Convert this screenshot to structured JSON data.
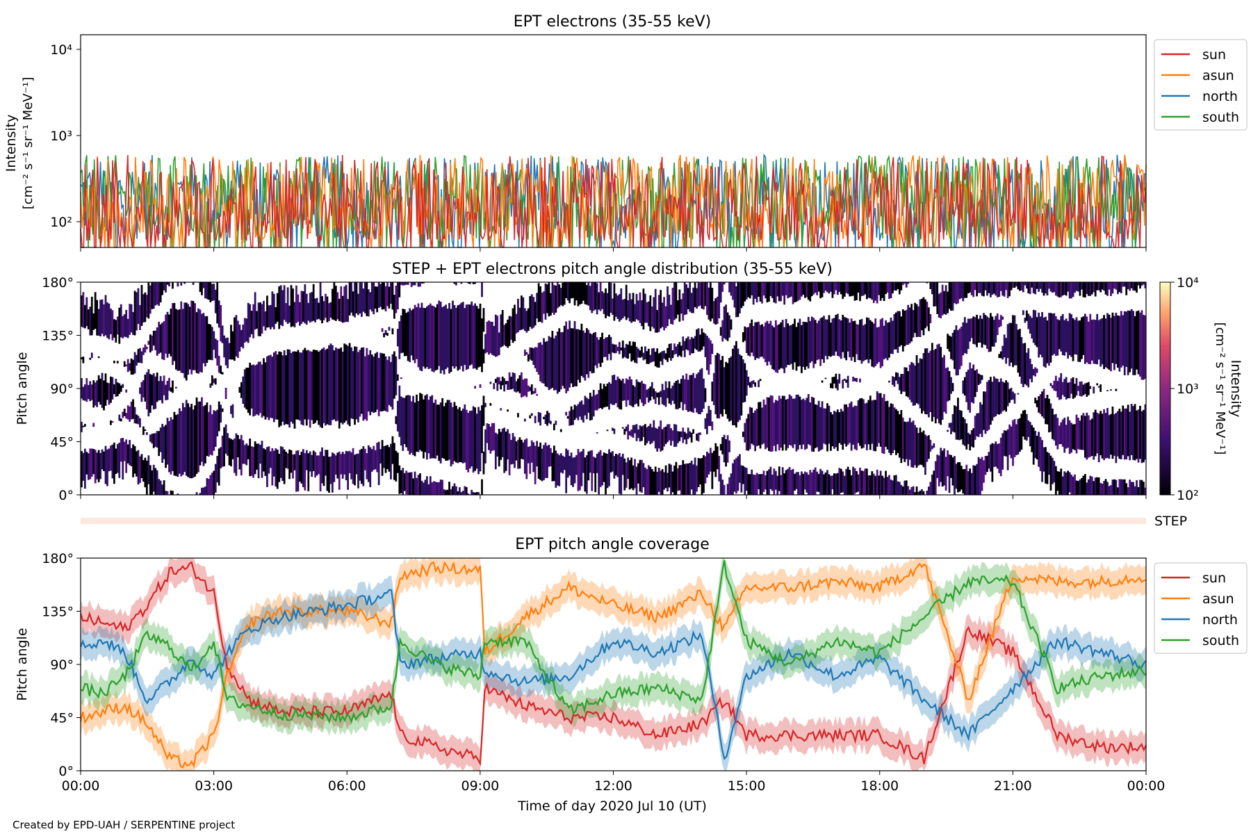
{
  "footer_credit": "Created by EPD-UAH / SERPENTINE project",
  "x_axis": {
    "label": "Time of day 2020 Jul 10 (UT)",
    "tick_labels": [
      "00:00",
      "03:00",
      "06:00",
      "09:00",
      "12:00",
      "15:00",
      "18:00",
      "21:00",
      "00:00"
    ],
    "range_hours": [
      0,
      24
    ]
  },
  "colors": {
    "sun": "#d62728",
    "asun": "#ff7f0e",
    "north": "#1f77b4",
    "south": "#2ca02c",
    "step_band": "#fde8de",
    "pad_fill": "#3b0f70"
  },
  "chart_data": [
    {
      "type": "line",
      "title": "EPT electrons (35-55 keV)",
      "ylabel_line1": "Intensity",
      "ylabel_line2": "[cm⁻² s⁻¹ sr⁻¹ MeV⁻¹]",
      "yscale": "log",
      "ylim": [
        50,
        15000
      ],
      "y_tick_labels": [
        "10⁴",
        "10³",
        "10²"
      ],
      "x_range_hours": [
        0,
        24
      ],
      "legend_position": "outside right, top",
      "series_names": [
        "sun",
        "asun",
        "north",
        "south"
      ],
      "typical_range": [
        60,
        600
      ],
      "note_series": "noisy counts fluctuating mostly between ~60 and ~600 throughout the day"
    },
    {
      "type": "heatmap",
      "title": "STEP + EPT electrons pitch angle distribution (35-55 keV)",
      "ylabel": "Pitch angle",
      "ylim": [
        0,
        180
      ],
      "y_tick_labels": [
        "180°",
        "135°",
        "90°",
        "45°",
        "0°"
      ],
      "colorbar": {
        "label_line1": "Intensity",
        "label_line2": "[cm⁻² s⁻¹ sr⁻¹ MeV⁻¹]",
        "scale": "log",
        "range": [
          100,
          10000
        ],
        "tick_labels": [
          "10⁴",
          "10³",
          "10²"
        ]
      },
      "step_strip_label": "STEP"
    },
    {
      "type": "line",
      "title": "EPT pitch angle coverage",
      "ylabel": "Pitch angle",
      "ylim": [
        0,
        180
      ],
      "y_tick_labels": [
        "180°",
        "135°",
        "90°",
        "45°",
        "0°"
      ],
      "legend_position": "outside right, top",
      "series": [
        {
          "name": "sun",
          "x_hours": [
            0,
            0.5,
            1,
            1.5,
            2,
            2.5,
            3,
            3.3,
            3.8,
            4.5,
            6,
            7,
            7.2,
            8,
            9,
            9.1,
            10,
            11,
            12,
            13,
            14,
            14.5,
            15,
            16,
            17,
            18,
            19,
            20,
            21,
            22,
            23,
            24
          ],
          "values": [
            130,
            125,
            120,
            140,
            168,
            172,
            150,
            90,
            60,
            50,
            50,
            65,
            30,
            20,
            10,
            70,
            55,
            45,
            45,
            30,
            40,
            60,
            30,
            30,
            30,
            30,
            10,
            120,
            100,
            30,
            20,
            20
          ]
        },
        {
          "name": "asun",
          "x_hours": [
            0,
            0.5,
            1,
            1.5,
            2,
            2.5,
            3,
            3.3,
            3.8,
            4.5,
            6,
            7,
            7.2,
            8,
            9,
            9.1,
            10,
            11,
            12,
            13,
            14,
            14.5,
            15,
            16,
            17,
            18,
            19,
            20,
            21,
            22,
            23,
            24
          ],
          "values": [
            45,
            50,
            55,
            40,
            10,
            5,
            30,
            80,
            125,
            135,
            135,
            125,
            165,
            172,
            170,
            100,
            130,
            155,
            140,
            130,
            150,
            120,
            155,
            155,
            160,
            155,
            175,
            60,
            165,
            160,
            160,
            165
          ]
        },
        {
          "name": "north",
          "x_hours": [
            0,
            0.5,
            1,
            1.5,
            2,
            2.5,
            3,
            3.3,
            3.8,
            4.5,
            6,
            7,
            7.2,
            8,
            9,
            9.1,
            10,
            11,
            12,
            13,
            14,
            14.5,
            15,
            16,
            17,
            18,
            19,
            20,
            21,
            22,
            23,
            24
          ],
          "values": [
            105,
            110,
            100,
            60,
            75,
            95,
            80,
            100,
            120,
            130,
            140,
            150,
            90,
            95,
            100,
            85,
            75,
            80,
            110,
            100,
            115,
            10,
            80,
            100,
            80,
            95,
            60,
            30,
            70,
            110,
            100,
            90
          ]
        },
        {
          "name": "south",
          "x_hours": [
            0,
            0.5,
            1,
            1.5,
            2,
            2.5,
            3,
            3.3,
            3.8,
            4.5,
            6,
            7,
            7.2,
            8,
            9,
            9.1,
            10,
            11,
            12,
            13,
            14,
            14.5,
            15,
            16,
            17,
            18,
            19,
            20,
            21,
            22,
            23,
            24
          ],
          "values": [
            70,
            65,
            80,
            115,
            105,
            85,
            110,
            60,
            55,
            48,
            45,
            55,
            110,
            90,
            80,
            110,
            110,
            50,
            65,
            70,
            60,
            175,
            110,
            90,
            110,
            100,
            130,
            160,
            160,
            70,
            80,
            85
          ]
        }
      ]
    }
  ]
}
